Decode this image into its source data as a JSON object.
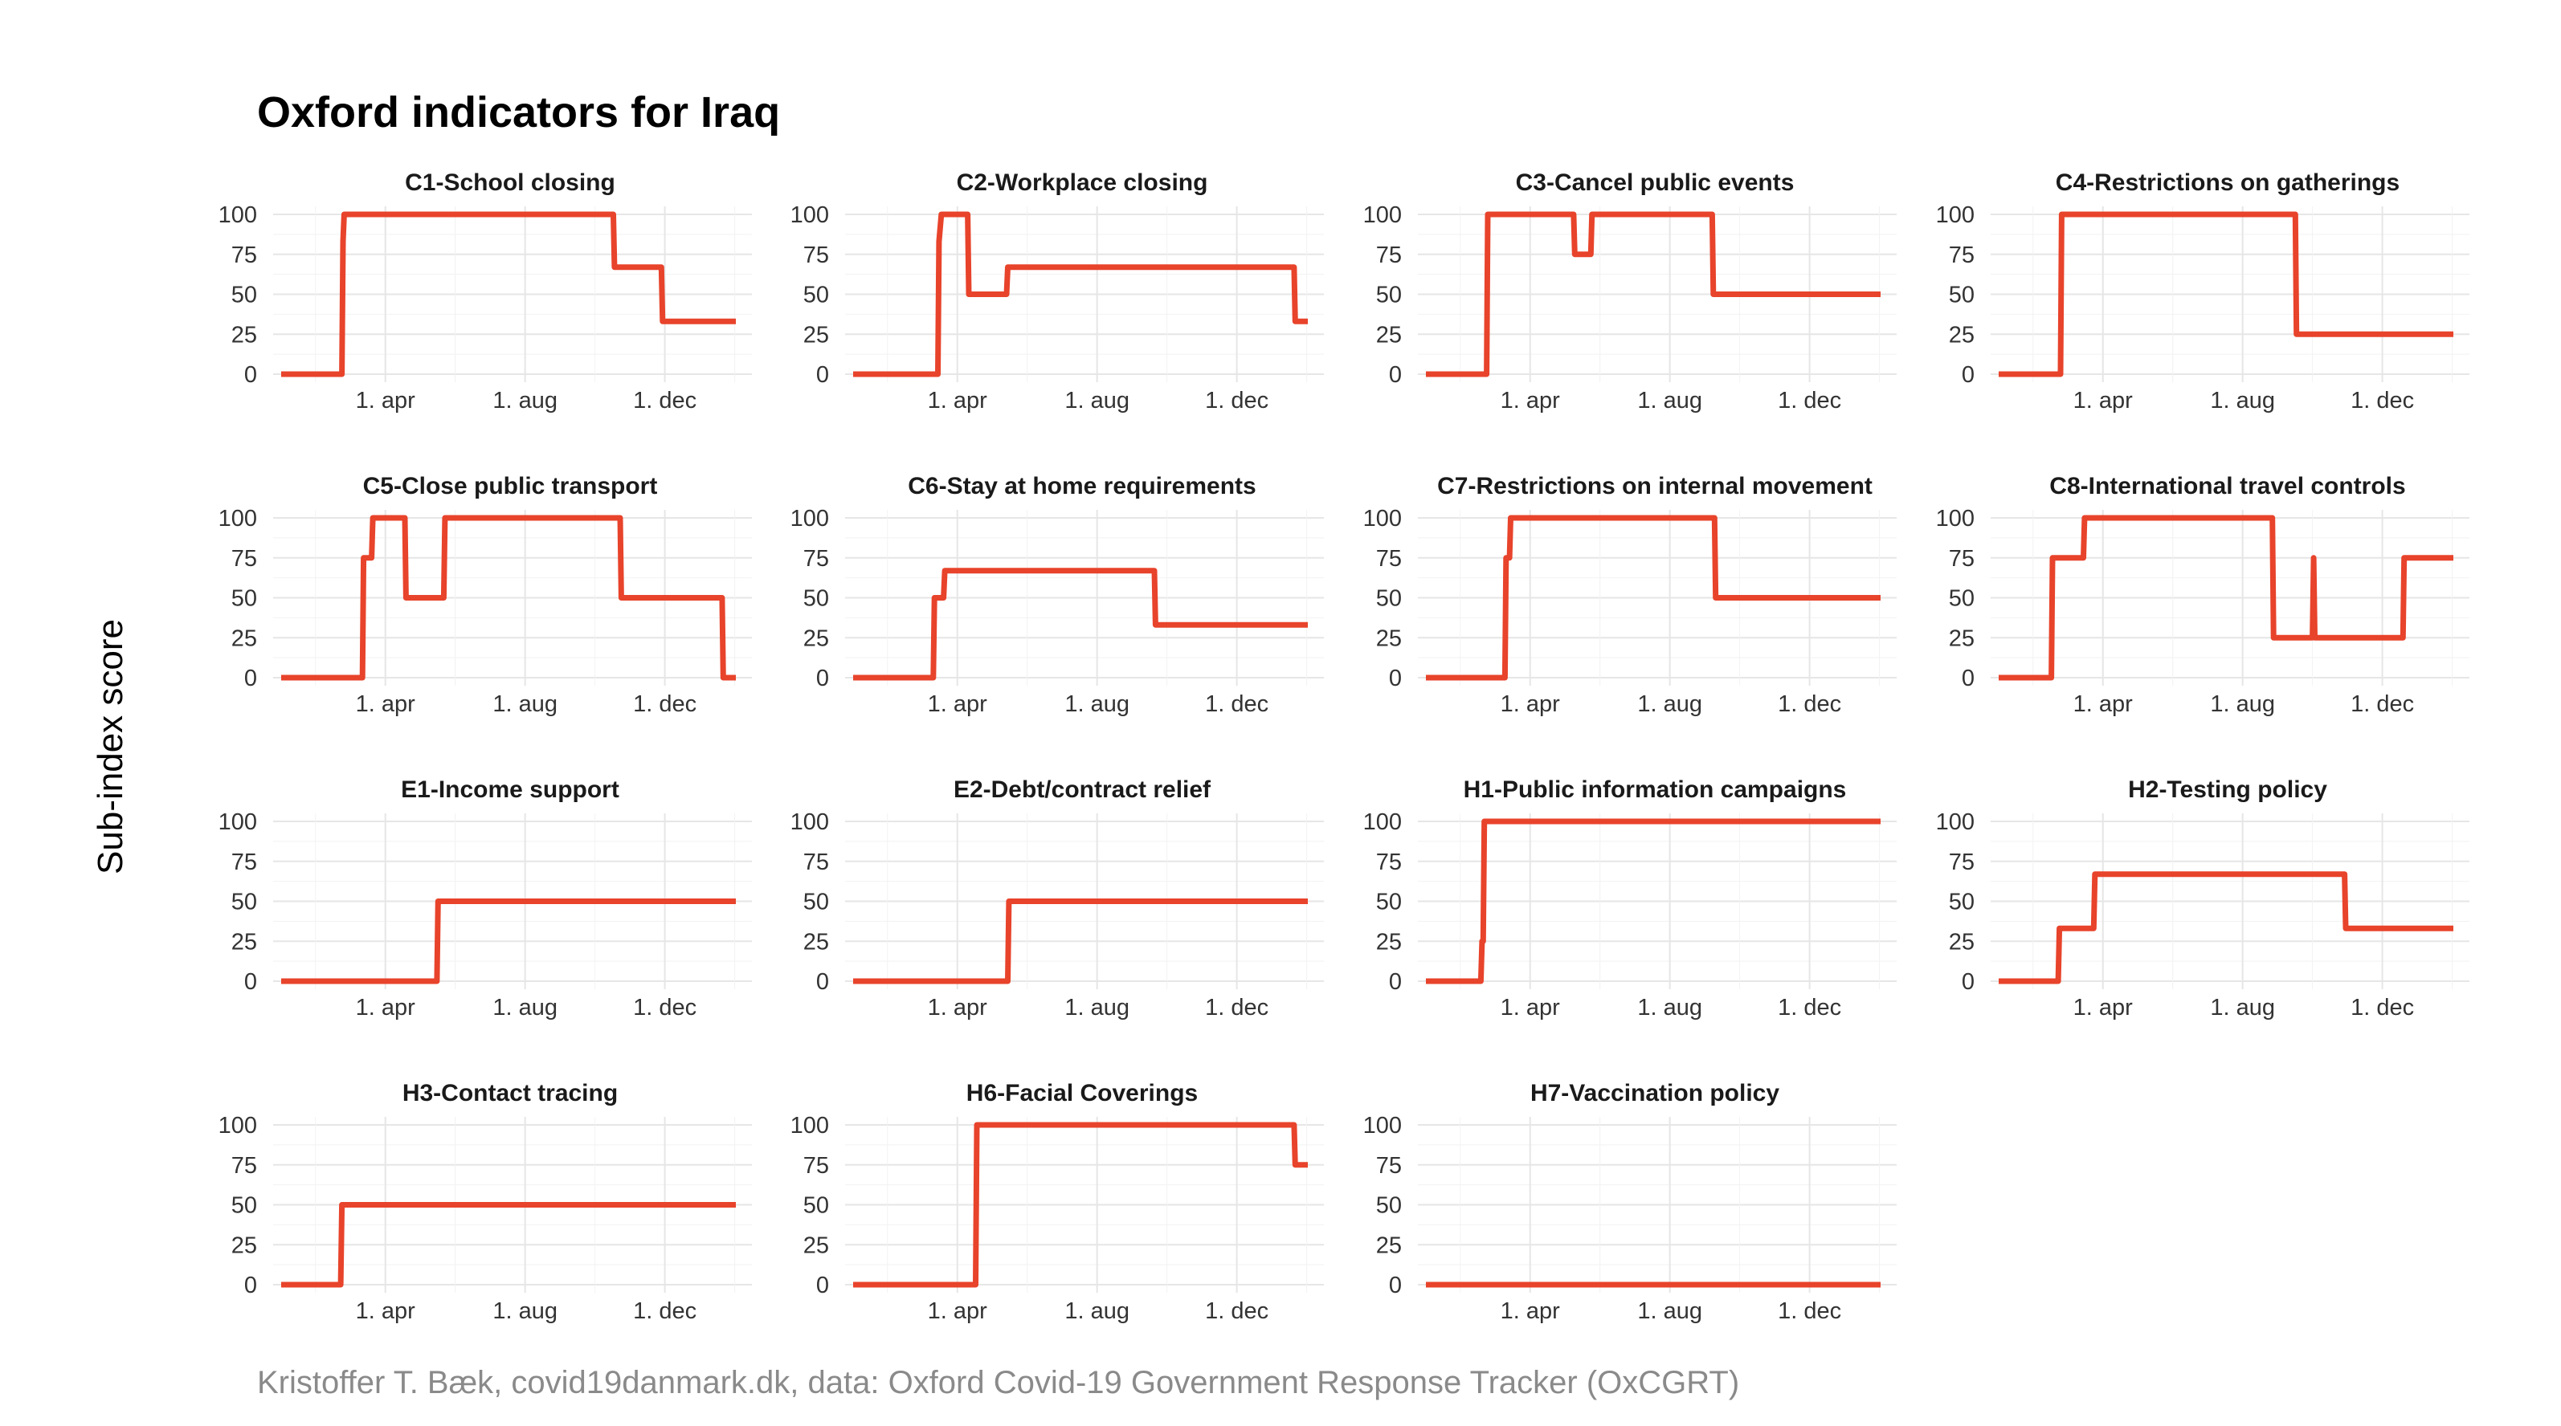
{
  "title": "Oxford indicators for Iraq",
  "ylabel": "Sub-index score",
  "caption": "Kristoffer T. Bæk, covid19danmark.dk, data: Oxford Covid-19 Government Response Tracker (OxCGRT)",
  "colors": {
    "line": "#e8432b",
    "grid": "#e6e6e6",
    "text": "#333333",
    "caption": "#8a8a8a"
  },
  "chart_data": {
    "type": "line",
    "layout": "facet-grid-4x4",
    "x_units": "days since 2020-01-01",
    "xlim": [
      1,
      398
    ],
    "ylim": [
      0,
      100
    ],
    "xticks": [
      {
        "value": 92,
        "label": "1. apr"
      },
      {
        "value": 214,
        "label": "1. aug"
      },
      {
        "value": 336,
        "label": "1. dec"
      }
    ],
    "yticks": [
      0,
      25,
      50,
      75,
      100
    ],
    "panels": [
      {
        "title": "C1-School closing",
        "points": [
          [
            1,
            0
          ],
          [
            54,
            0
          ],
          [
            55,
            83
          ],
          [
            56,
            100
          ],
          [
            291,
            100
          ],
          [
            292,
            67
          ],
          [
            333,
            67
          ],
          [
            334,
            33
          ],
          [
            398,
            33
          ]
        ]
      },
      {
        "title": "C2-Workplace closing",
        "points": [
          [
            1,
            0
          ],
          [
            75,
            0
          ],
          [
            76,
            83
          ],
          [
            78,
            100
          ],
          [
            101,
            100
          ],
          [
            102,
            50
          ],
          [
            135,
            50
          ],
          [
            136,
            67
          ],
          [
            386,
            67
          ],
          [
            387,
            33
          ],
          [
            398,
            33
          ]
        ]
      },
      {
        "title": "C3-Cancel public events",
        "points": [
          [
            1,
            0
          ],
          [
            54,
            0
          ],
          [
            55,
            100
          ],
          [
            130,
            100
          ],
          [
            131,
            75
          ],
          [
            145,
            75
          ],
          [
            146,
            100
          ],
          [
            251,
            100
          ],
          [
            252,
            50
          ],
          [
            398,
            50
          ]
        ]
      },
      {
        "title": "C4-Restrictions on gatherings",
        "points": [
          [
            1,
            0
          ],
          [
            55,
            0
          ],
          [
            56,
            100
          ],
          [
            260,
            100
          ],
          [
            261,
            25
          ],
          [
            398,
            25
          ]
        ]
      },
      {
        "title": "C5-Close public transport",
        "points": [
          [
            1,
            0
          ],
          [
            72,
            0
          ],
          [
            73,
            75
          ],
          [
            80,
            75
          ],
          [
            81,
            100
          ],
          [
            109,
            100
          ],
          [
            110,
            50
          ],
          [
            143,
            50
          ],
          [
            144,
            100
          ],
          [
            297,
            100
          ],
          [
            298,
            50
          ],
          [
            386,
            50
          ],
          [
            387,
            0
          ],
          [
            398,
            0
          ]
        ]
      },
      {
        "title": "C6-Stay at home requirements",
        "points": [
          [
            1,
            0
          ],
          [
            71,
            0
          ],
          [
            72,
            50
          ],
          [
            80,
            50
          ],
          [
            81,
            67
          ],
          [
            264,
            67
          ],
          [
            265,
            33
          ],
          [
            398,
            33
          ]
        ]
      },
      {
        "title": "C7-Restrictions on internal movement",
        "points": [
          [
            1,
            0
          ],
          [
            70,
            0
          ],
          [
            71,
            75
          ],
          [
            74,
            75
          ],
          [
            75,
            100
          ],
          [
            253,
            100
          ],
          [
            254,
            50
          ],
          [
            398,
            50
          ]
        ]
      },
      {
        "title": "C8-International travel controls",
        "points": [
          [
            1,
            0
          ],
          [
            47,
            0
          ],
          [
            48,
            75
          ],
          [
            75,
            75
          ],
          [
            76,
            100
          ],
          [
            240,
            100
          ],
          [
            241,
            25
          ],
          [
            275,
            25
          ],
          [
            276,
            75
          ],
          [
            277,
            25
          ],
          [
            354,
            25
          ],
          [
            355,
            75
          ],
          [
            398,
            75
          ]
        ]
      },
      {
        "title": "E1-Income support",
        "points": [
          [
            1,
            0
          ],
          [
            137,
            0
          ],
          [
            138,
            50
          ],
          [
            398,
            50
          ]
        ]
      },
      {
        "title": "E2-Debt/contract relief",
        "points": [
          [
            1,
            0
          ],
          [
            136,
            0
          ],
          [
            137,
            50
          ],
          [
            398,
            50
          ]
        ]
      },
      {
        "title": "H1-Public information campaigns",
        "points": [
          [
            1,
            0
          ],
          [
            49,
            0
          ],
          [
            50,
            25
          ],
          [
            51,
            25
          ],
          [
            52,
            100
          ],
          [
            398,
            100
          ]
        ]
      },
      {
        "title": "H2-Testing policy",
        "points": [
          [
            1,
            0
          ],
          [
            53,
            0
          ],
          [
            54,
            33
          ],
          [
            84,
            33
          ],
          [
            85,
            67
          ],
          [
            303,
            67
          ],
          [
            304,
            33
          ],
          [
            398,
            33
          ]
        ]
      },
      {
        "title": "H3-Contact tracing",
        "points": [
          [
            1,
            0
          ],
          [
            53,
            0
          ],
          [
            54,
            50
          ],
          [
            398,
            50
          ]
        ]
      },
      {
        "title": "H6-Facial Coverings",
        "points": [
          [
            1,
            0
          ],
          [
            108,
            0
          ],
          [
            109,
            100
          ],
          [
            386,
            100
          ],
          [
            387,
            75
          ],
          [
            398,
            75
          ]
        ]
      },
      {
        "title": "H7-Vaccination policy",
        "points": [
          [
            1,
            0
          ],
          [
            398,
            0
          ]
        ]
      }
    ]
  }
}
